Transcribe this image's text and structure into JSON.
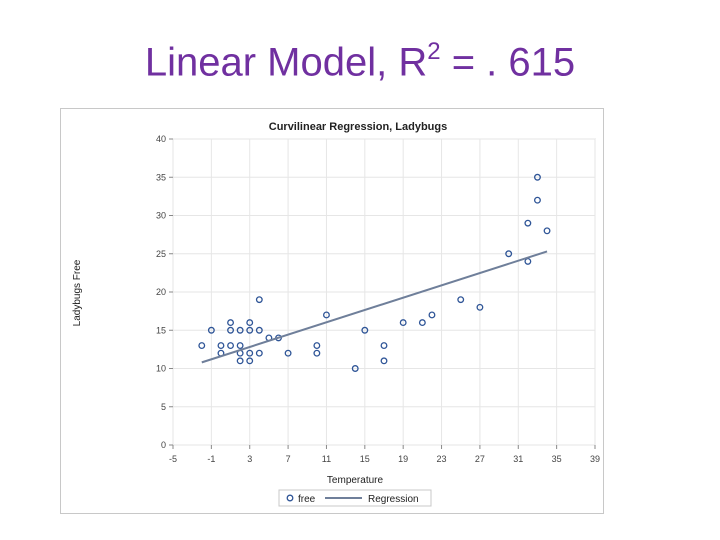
{
  "slide": {
    "title_prefix": "Linear Model, R",
    "title_sup": "2",
    "title_suffix": " = . 615"
  },
  "chart_data": {
    "type": "scatter",
    "title": "Curvilinear Regression, Ladybugs",
    "xlabel": "Temperature",
    "ylabel": "Ladybugs Free",
    "xlim": [
      -5,
      39
    ],
    "ylim": [
      0,
      40
    ],
    "x_ticks": [
      -5,
      -1,
      3,
      7,
      11,
      15,
      19,
      23,
      27,
      31,
      35,
      39
    ],
    "y_ticks": [
      0,
      5,
      10,
      15,
      20,
      25,
      30,
      35,
      40
    ],
    "grid": true,
    "legend_position": "bottom",
    "series": [
      {
        "name": "free",
        "kind": "points",
        "color": "#2f5597",
        "points": [
          [
            -2,
            13
          ],
          [
            -1,
            15
          ],
          [
            0,
            12
          ],
          [
            0,
            13
          ],
          [
            1,
            13
          ],
          [
            1,
            15
          ],
          [
            1,
            16
          ],
          [
            2,
            11
          ],
          [
            2,
            12
          ],
          [
            2,
            13
          ],
          [
            2,
            15
          ],
          [
            3,
            11
          ],
          [
            3,
            12
          ],
          [
            3,
            15
          ],
          [
            3,
            16
          ],
          [
            4,
            12
          ],
          [
            4,
            15
          ],
          [
            4,
            19
          ],
          [
            5,
            14
          ],
          [
            6,
            14
          ],
          [
            7,
            12
          ],
          [
            10,
            12
          ],
          [
            10,
            13
          ],
          [
            11,
            17
          ],
          [
            14,
            10
          ],
          [
            15,
            15
          ],
          [
            17,
            11
          ],
          [
            17,
            13
          ],
          [
            19,
            16
          ],
          [
            21,
            16
          ],
          [
            22,
            17
          ],
          [
            25,
            19
          ],
          [
            27,
            18
          ],
          [
            30,
            25
          ],
          [
            32,
            24
          ],
          [
            32,
            29
          ],
          [
            33,
            32
          ],
          [
            33,
            35
          ],
          [
            34,
            28
          ]
        ]
      },
      {
        "name": "Regression",
        "kind": "line",
        "color": "#6f7f9a",
        "points": [
          [
            -2,
            10.8
          ],
          [
            34,
            25.3
          ]
        ]
      }
    ]
  }
}
